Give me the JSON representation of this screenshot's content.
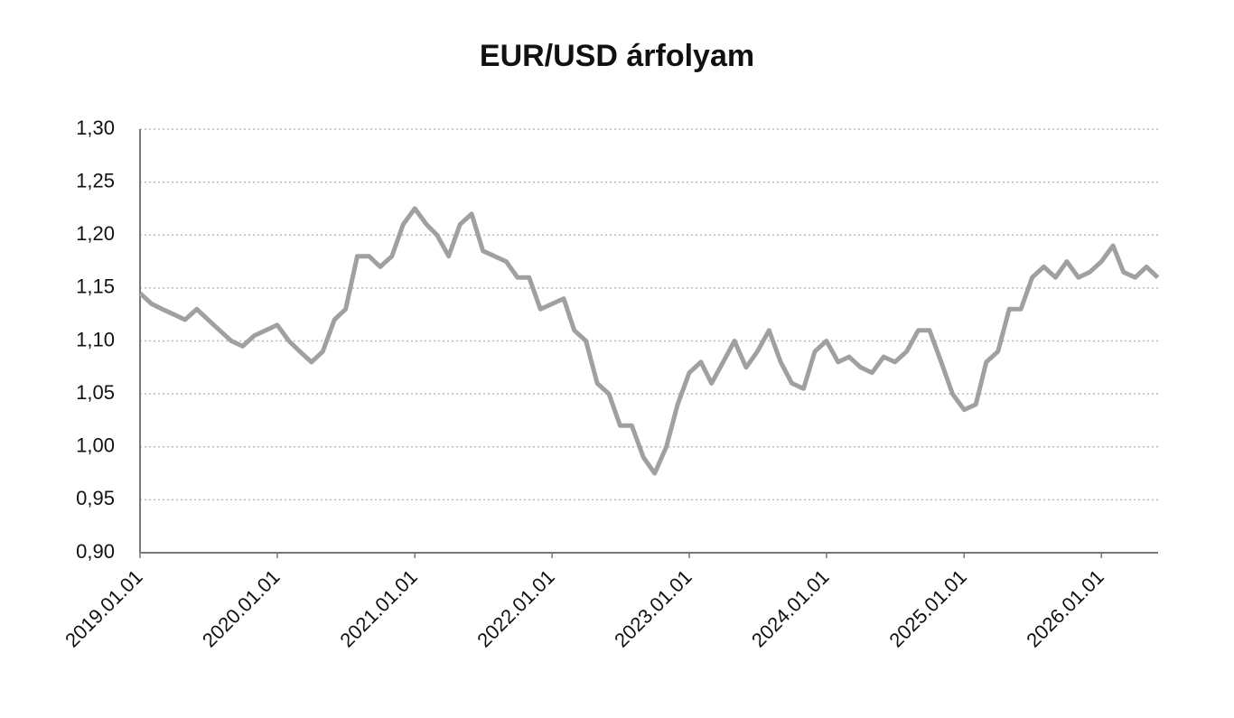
{
  "chart_data": {
    "type": "line",
    "title": "EUR/USD árfolyam",
    "x": [
      "2019.01.01",
      "2019.02.01",
      "2019.03.01",
      "2019.04.01",
      "2019.05.01",
      "2019.06.01",
      "2019.07.01",
      "2019.08.01",
      "2019.09.01",
      "2019.10.01",
      "2019.11.01",
      "2019.12.01",
      "2020.01.01",
      "2020.02.01",
      "2020.03.01",
      "2020.04.01",
      "2020.05.01",
      "2020.06.01",
      "2020.07.01",
      "2020.08.01",
      "2020.09.01",
      "2020.10.01",
      "2020.11.01",
      "2020.12.01",
      "2021.01.01",
      "2021.02.01",
      "2021.03.01",
      "2021.04.01",
      "2021.05.01",
      "2021.06.01",
      "2021.07.01",
      "2021.08.01",
      "2021.09.01",
      "2021.10.01",
      "2021.11.01",
      "2021.12.01",
      "2022.01.01",
      "2022.02.01",
      "2022.03.01",
      "2022.04.01",
      "2022.05.01",
      "2022.06.01",
      "2022.07.01",
      "2022.08.01",
      "2022.09.01",
      "2022.10.01",
      "2022.11.01",
      "2022.12.01",
      "2023.01.01",
      "2023.02.01",
      "2023.03.01",
      "2023.04.01",
      "2023.05.01",
      "2023.06.01",
      "2023.07.01",
      "2023.08.01",
      "2023.09.01",
      "2023.10.01",
      "2023.11.01",
      "2023.12.01",
      "2024.01.01",
      "2024.02.01",
      "2024.03.01",
      "2024.04.01",
      "2024.05.01",
      "2024.06.01",
      "2024.07.01",
      "2024.08.01",
      "2024.09.01",
      "2024.10.01",
      "2024.11.01",
      "2024.12.01",
      "2025.01.01",
      "2025.02.01",
      "2025.03.01",
      "2025.04.01",
      "2025.05.01",
      "2025.06.01",
      "2025.07.01",
      "2025.08.01",
      "2025.09.01",
      "2025.10.01",
      "2025.11.01",
      "2025.12.01",
      "2026.01.01",
      "2026.02.01",
      "2026.03.01",
      "2026.04.01",
      "2026.05.01",
      "2026.05.31"
    ],
    "series": [
      {
        "color": "#a0a0a0",
        "values": [
          1.145,
          1.135,
          1.13,
          1.125,
          1.12,
          1.13,
          1.12,
          1.11,
          1.1,
          1.095,
          1.105,
          1.11,
          1.115,
          1.1,
          1.09,
          1.08,
          1.09,
          1.12,
          1.13,
          1.18,
          1.18,
          1.17,
          1.18,
          1.21,
          1.225,
          1.21,
          1.2,
          1.18,
          1.21,
          1.22,
          1.185,
          1.18,
          1.175,
          1.16,
          1.16,
          1.13,
          1.135,
          1.14,
          1.11,
          1.1,
          1.06,
          1.05,
          1.02,
          1.02,
          0.99,
          0.975,
          1.0,
          1.04,
          1.07,
          1.08,
          1.06,
          1.08,
          1.1,
          1.075,
          1.09,
          1.11,
          1.08,
          1.06,
          1.055,
          1.09,
          1.1,
          1.08,
          1.085,
          1.075,
          1.07,
          1.085,
          1.08,
          1.09,
          1.11,
          1.11,
          1.08,
          1.05,
          1.035,
          1.04,
          1.08,
          1.09,
          1.13,
          1.13,
          1.16,
          1.17,
          1.16,
          1.175,
          1.16,
          1.165,
          1.175,
          1.19,
          1.165,
          1.16,
          1.17,
          1.16
        ]
      }
    ],
    "xlim": [
      "2019.01.01",
      "2026.06.01"
    ],
    "xticks": [
      "2019.01.01",
      "2020.01.01",
      "2021.01.01",
      "2022.01.01",
      "2023.01.01",
      "2024.01.01",
      "2025.01.01",
      "2026.01.01"
    ],
    "ylim": [
      0.9,
      1.3
    ],
    "yticks": [
      {
        "value": 0.9,
        "label": "0,90"
      },
      {
        "value": 0.95,
        "label": "0,95"
      },
      {
        "value": 1.0,
        "label": "1,00"
      },
      {
        "value": 1.05,
        "label": "1,05"
      },
      {
        "value": 1.1,
        "label": "1,10"
      },
      {
        "value": 1.15,
        "label": "1,15"
      },
      {
        "value": 1.2,
        "label": "1,20"
      },
      {
        "value": 1.25,
        "label": "1,25"
      },
      {
        "value": 1.3,
        "label": "1,30"
      }
    ],
    "grid": true
  }
}
